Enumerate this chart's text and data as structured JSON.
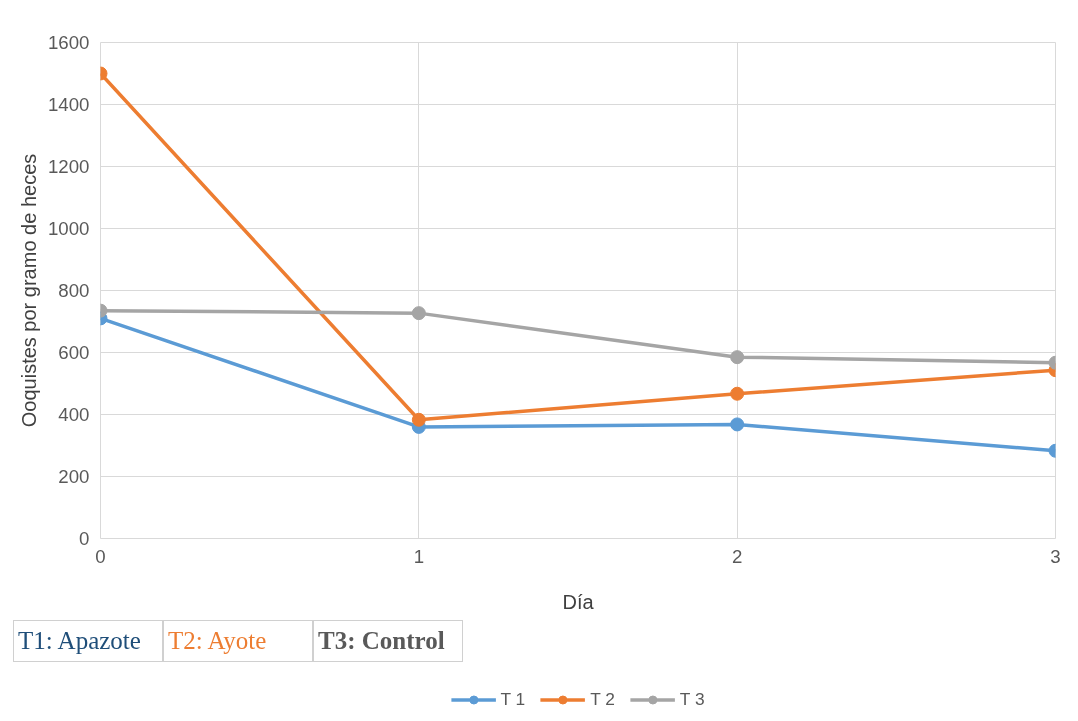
{
  "chart_data": {
    "type": "line",
    "xlabel": "Día",
    "ylabel": "Ooquistes por gramo de heces",
    "x": [
      0,
      1,
      2,
      3
    ],
    "xlim": [
      0,
      3
    ],
    "xticks": [
      0,
      1,
      2,
      3
    ],
    "ylim": [
      0,
      1600
    ],
    "yticks": [
      0,
      200,
      400,
      600,
      800,
      1000,
      1200,
      1400,
      1600
    ],
    "series": [
      {
        "name": "T 1",
        "color": "#5b9bd5",
        "values": [
          710,
          360,
          368,
          283
        ]
      },
      {
        "name": "T 2",
        "color": "#ed7d31",
        "values": [
          1500,
          383,
          467,
          543
        ]
      },
      {
        "name": "T 3",
        "color": "#a5a5a5",
        "values": [
          735,
          727,
          585,
          567
        ]
      }
    ],
    "annotations": [
      "T1: Apazote",
      "T2: Ayote",
      "T3: Control"
    ],
    "grid": true,
    "legend": "bottom",
    "marker": "circle",
    "line_style": "solid"
  }
}
